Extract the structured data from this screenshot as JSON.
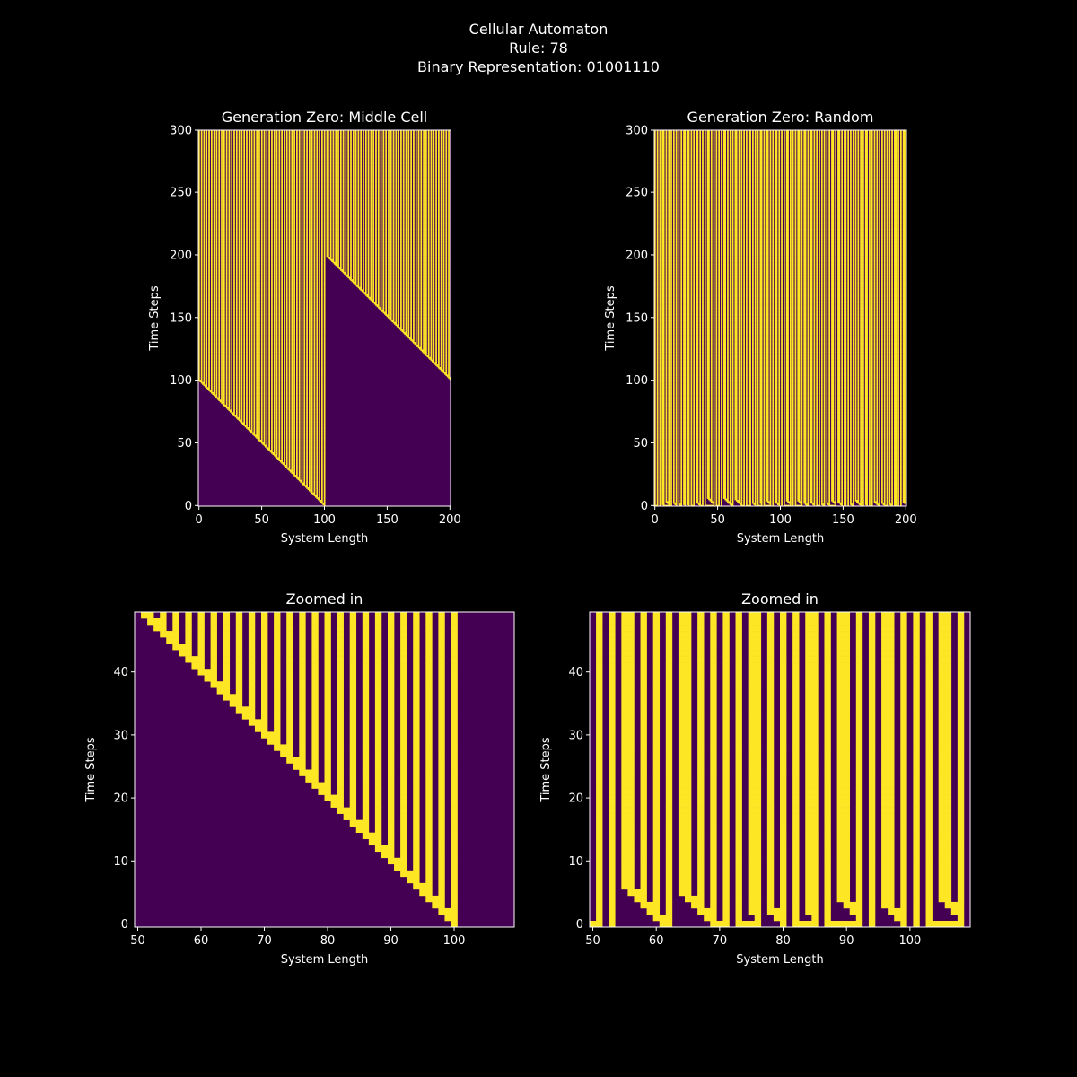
{
  "figure": {
    "title_lines": [
      "Cellular Automaton",
      "Rule: 78",
      "Binary Representation: 01001110"
    ],
    "background": "#000000",
    "text_color": "#ffffff",
    "colormap": "viridis",
    "cell_colors": {
      "dead": "#440154",
      "alive": "#fde725"
    }
  },
  "automaton": {
    "rule": 78,
    "binary": "01001110",
    "system_length": 201,
    "time_steps": 300,
    "random_density": 0.5,
    "random_seed": 78
  },
  "chart_data": [
    {
      "type": "heatmap",
      "id": "middle",
      "title": "Generation Zero: Middle Cell",
      "xlabel": "System Length",
      "ylabel": "Time Steps",
      "initial_condition": "middle",
      "xlim": [
        0,
        201
      ],
      "ylim": [
        0,
        300
      ],
      "xticks": [
        0,
        50,
        100,
        150,
        200
      ],
      "yticks": [
        0,
        50,
        100,
        150,
        200,
        250,
        300
      ]
    },
    {
      "type": "heatmap",
      "id": "random",
      "title": "Generation Zero: Random",
      "xlabel": "System Length",
      "ylabel": "Time Steps",
      "initial_condition": "random",
      "xlim": [
        0,
        201
      ],
      "ylim": [
        0,
        300
      ],
      "xticks": [
        0,
        50,
        100,
        150,
        200
      ],
      "yticks": [
        0,
        50,
        100,
        150,
        200,
        250,
        300
      ]
    },
    {
      "type": "heatmap",
      "id": "zoom-middle",
      "title": "Zoomed in",
      "xlabel": "System Length",
      "ylabel": "Time Steps",
      "initial_condition": "middle",
      "xlim": [
        50,
        110
      ],
      "ylim": [
        0,
        50
      ],
      "xticks": [
        50,
        60,
        70,
        80,
        90,
        100
      ],
      "yticks": [
        0,
        10,
        20,
        30,
        40
      ]
    },
    {
      "type": "heatmap",
      "id": "zoom-random",
      "title": "Zoomed in",
      "xlabel": "System Length",
      "ylabel": "Time Steps",
      "initial_condition": "random",
      "xlim": [
        50,
        110
      ],
      "ylim": [
        0,
        50
      ],
      "xticks": [
        50,
        60,
        70,
        80,
        90,
        100
      ],
      "yticks": [
        0,
        10,
        20,
        30,
        40
      ]
    }
  ]
}
